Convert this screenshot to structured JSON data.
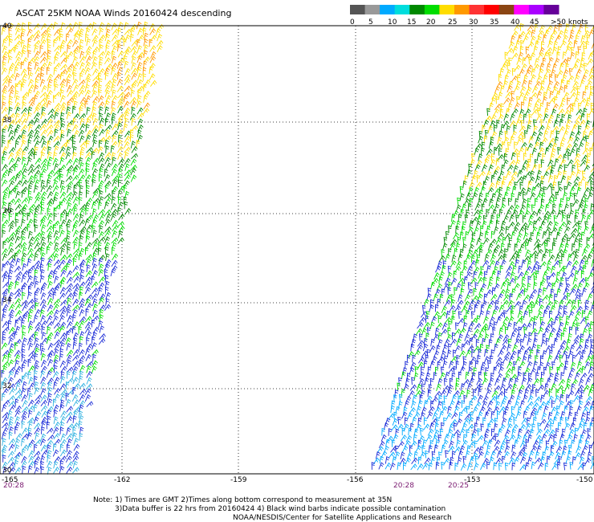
{
  "title": "ASCAT 25KM NOAA Winds 20160424 descending",
  "legend": {
    "colors": [
      "#555555",
      "#999999",
      "#00aaff",
      "#00dddd",
      "#008800",
      "#00dd00",
      "#ffdd00",
      "#ff9900",
      "#ff3333",
      "#ff0000",
      "#8b4513",
      "#ff00ff",
      "#aa00ff",
      "#660099"
    ],
    "labels": [
      "0",
      "5",
      "10",
      "15",
      "20",
      "25",
      "30",
      "35",
      "40",
      "45",
      ">50 knots"
    ]
  },
  "axes": {
    "lat_labels": [
      "40",
      "38",
      "36",
      "34",
      "32",
      "30"
    ],
    "lon_labels": [
      "-165",
      "-162",
      "-159",
      "-156",
      "-153",
      "-150"
    ]
  },
  "swath_times": {
    "left": "20:28",
    "right_a": "20:28",
    "right_b": "20:25"
  },
  "notes": [
    "Note: 1) Times are GMT 2)Times along bottom correspond to measurement at 35N",
    "3)Data buffer is 22 hrs from 20160424 4) Black wind barbs indicate possible contamination",
    "NOAA/NESDIS/Center for Satellite Applications and Research"
  ]
}
